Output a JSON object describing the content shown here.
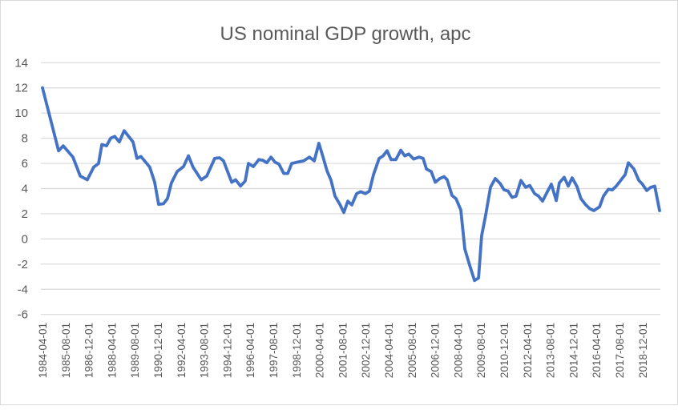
{
  "chart_data": {
    "type": "line",
    "title": "US nominal GDP growth, apc",
    "xlabel": "",
    "ylabel": "",
    "ylim": [
      -6,
      14
    ],
    "yticks": [
      14,
      12,
      10,
      8,
      6,
      4,
      2,
      0,
      -2,
      -4,
      -6
    ],
    "xlim": [
      1984.25,
      2019.9
    ],
    "grid": true,
    "legend": "none",
    "x_tick_labels": [
      "1984-04-01",
      "1985-08-01",
      "1986-12-01",
      "1988-04-01",
      "1989-08-01",
      "1990-12-01",
      "1992-04-01",
      "1993-08-01",
      "1994-12-01",
      "1996-04-01",
      "1997-08-01",
      "1998-12-01",
      "2000-04-01",
      "2001-08-01",
      "2002-12-01",
      "2004-04-01",
      "2005-08-01",
      "2006-12-01",
      "2008-04-01",
      "2009-08-01",
      "2010-12-01",
      "2012-04-01",
      "2013-08-01",
      "2014-12-01",
      "2016-04-01",
      "2017-08-01",
      "2018-12-01"
    ],
    "series": [
      {
        "name": "US nominal GDP growth, apc",
        "color": "#4472C4",
        "x": [
          1984.25,
          1985.18,
          1985.45,
          1986.01,
          1986.43,
          1986.84,
          1987.21,
          1987.49,
          1987.68,
          1987.95,
          1988.19,
          1988.42,
          1988.69,
          1988.97,
          1989.48,
          1989.71,
          1989.94,
          1990.45,
          1990.73,
          1990.96,
          1991.24,
          1991.47,
          1991.7,
          1992.03,
          1992.4,
          1992.68,
          1992.95,
          1993.42,
          1993.74,
          1994.2,
          1994.48,
          1994.71,
          1995.18,
          1995.41,
          1995.69,
          1995.96,
          1996.15,
          1996.43,
          1996.75,
          1996.98,
          1997.21,
          1997.45,
          1997.68,
          1997.91,
          1998.19,
          1998.42,
          1998.65,
          1998.97,
          1999.34,
          1999.67,
          1999.95,
          2000.22,
          2000.46,
          2000.69,
          2000.92,
          2001.15,
          2001.43,
          2001.66,
          2001.89,
          2002.12,
          2002.4,
          2002.63,
          2002.91,
          2003.14,
          2003.37,
          2003.7,
          2003.93,
          2004.16,
          2004.39,
          2004.67,
          2004.95,
          2005.18,
          2005.41,
          2005.69,
          2006.01,
          2006.24,
          2006.43,
          2006.71,
          2006.94,
          2007.21,
          2007.45,
          2007.63,
          2007.91,
          2008.14,
          2008.42,
          2008.65,
          2008.93,
          2009.21,
          2009.44,
          2009.62,
          2009.85,
          2010.13,
          2010.41,
          2010.69,
          2010.92,
          2011.15,
          2011.38,
          2011.61,
          2011.89,
          2012.17,
          2012.4,
          2012.68,
          2012.91,
          2013.14,
          2013.42,
          2013.65,
          2013.93,
          2014.11,
          2014.39,
          2014.62,
          2014.85,
          2015.13,
          2015.36,
          2015.64,
          2015.87,
          2016.1,
          2016.43,
          2016.66,
          2016.94,
          2017.17,
          2017.4,
          2017.68,
          2017.91,
          2018.1,
          2018.42,
          2018.7,
          2018.88,
          2019.16,
          2019.39,
          2019.62,
          2019.9
        ],
        "values": [
          12.0,
          7.0,
          7.4,
          6.5,
          5.0,
          4.7,
          5.7,
          6.0,
          7.5,
          7.4,
          8.0,
          8.15,
          7.7,
          8.6,
          7.7,
          6.4,
          6.55,
          5.7,
          4.5,
          2.75,
          2.8,
          3.2,
          4.45,
          5.35,
          5.75,
          6.6,
          5.7,
          4.7,
          5.0,
          6.4,
          6.45,
          6.2,
          4.5,
          4.7,
          4.2,
          4.6,
          6.0,
          5.75,
          6.3,
          6.25,
          6.05,
          6.5,
          6.1,
          5.95,
          5.2,
          5.2,
          6.0,
          6.1,
          6.2,
          6.5,
          6.2,
          7.6,
          6.5,
          5.4,
          4.65,
          3.4,
          2.75,
          2.1,
          3.0,
          2.7,
          3.6,
          3.75,
          3.6,
          3.8,
          5.1,
          6.4,
          6.6,
          7.0,
          6.3,
          6.3,
          7.05,
          6.6,
          6.75,
          6.35,
          6.5,
          6.4,
          5.55,
          5.35,
          4.5,
          4.8,
          4.95,
          4.7,
          3.45,
          3.2,
          2.3,
          -0.8,
          -2.1,
          -3.3,
          -3.1,
          0.25,
          1.85,
          4.1,
          4.8,
          4.4,
          3.9,
          3.8,
          3.3,
          3.4,
          4.65,
          4.1,
          4.25,
          3.6,
          3.4,
          3.0,
          3.75,
          4.35,
          3.05,
          4.45,
          4.9,
          4.2,
          4.85,
          4.15,
          3.2,
          2.7,
          2.4,
          2.25,
          2.55,
          3.4,
          3.95,
          3.9,
          4.2,
          4.7,
          5.1,
          6.05,
          5.55,
          4.65,
          4.4,
          3.85,
          4.1,
          4.2,
          2.25
        ]
      }
    ]
  }
}
